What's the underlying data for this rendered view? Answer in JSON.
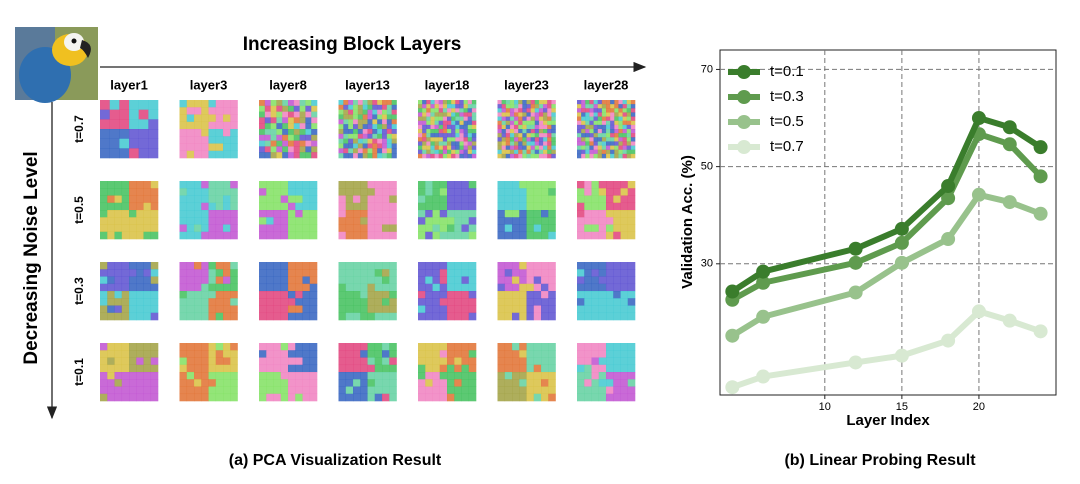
{
  "panel_a": {
    "top_label": "Increasing Block Layers",
    "side_label": "Decreasing Noise Level",
    "layers": [
      "layer1",
      "layer3",
      "layer8",
      "layer13",
      "layer18",
      "layer23",
      "layer28"
    ],
    "noise_levels": [
      "t=0.7",
      "t=0.5",
      "t=0.3",
      "t=0.1"
    ],
    "caption": "(a) PCA Visualization Result"
  },
  "chart_data": {
    "type": "line",
    "caption": "(b) Linear Probing Result",
    "x_label": "Layer Index",
    "y_label": "Validation Acc. (%)",
    "x": [
      4,
      6,
      12,
      15,
      18,
      20,
      22,
      24
    ],
    "series": [
      {
        "name": "t=0.1",
        "color": "#3a7d2c",
        "values": [
          24.3,
          28.4,
          33.1,
          37.2,
          46,
          60,
          58.1,
          54
        ]
      },
      {
        "name": "t=0.3",
        "color": "#5f9b4e",
        "values": [
          22.6,
          26.1,
          30.2,
          34.3,
          43.5,
          56.7,
          54.6,
          48
        ]
      },
      {
        "name": "t=0.5",
        "color": "#98c28c",
        "values": [
          15.2,
          19.1,
          24.1,
          30.2,
          35.1,
          44.2,
          42.7,
          40.3
        ]
      },
      {
        "name": "t=0.7",
        "color": "#d8e9d2",
        "values": [
          4.6,
          6.8,
          9.7,
          11.1,
          14.2,
          20.2,
          18.3,
          16.1
        ]
      }
    ],
    "xlim": [
      3.2,
      25
    ],
    "ylim": [
      3,
      74
    ],
    "xticks": [
      10,
      15,
      20
    ],
    "yticks": [
      30,
      50,
      70
    ],
    "grid": true,
    "legend": "upper left"
  }
}
